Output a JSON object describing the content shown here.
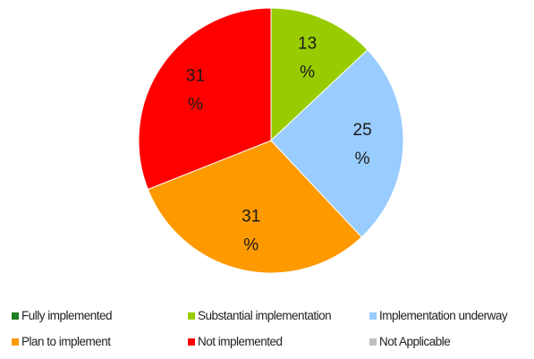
{
  "chart_data": {
    "type": "pie",
    "series": [
      {
        "label": "Fully implemented",
        "value": 0,
        "color": "#1e7d22"
      },
      {
        "label": "Substantial implementation",
        "value": 13,
        "display": [
          "13",
          "%"
        ],
        "color": "#99cc00"
      },
      {
        "label": "Implementation underway",
        "value": 25,
        "display": [
          "25",
          "%"
        ],
        "color": "#99ccff"
      },
      {
        "label": "Plan to implement",
        "value": 31,
        "display": [
          "31",
          "%"
        ],
        "color": "#ff9900"
      },
      {
        "label": "Not implemented",
        "value": 31,
        "display": [
          "31",
          "%"
        ],
        "color": "#ff0000"
      },
      {
        "label": "Not Applicable",
        "value": 0,
        "color": "#c0c0c0"
      }
    ],
    "start_angle_deg": 0,
    "direction": "clockwise",
    "legend_placement": "bottom"
  }
}
